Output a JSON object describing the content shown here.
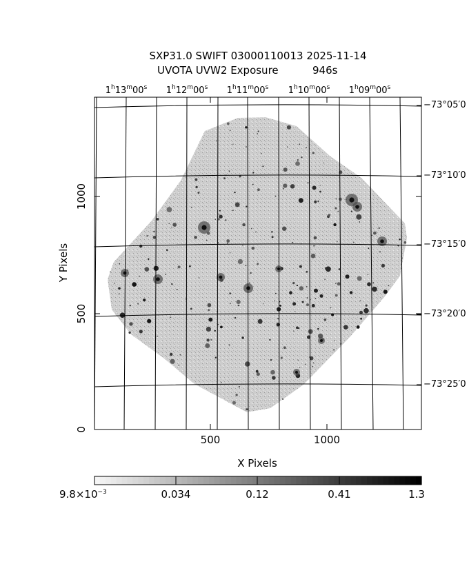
{
  "title": {
    "line1": "SXP31.0 SWIFT 03000110013 2025-11-14",
    "line2": "UVOTA UVW2 Exposure",
    "exposure": "946s"
  },
  "axes": {
    "xlabel": "X Pixels",
    "ylabel": "Y Pixels",
    "x_ticks": [
      "500",
      "1000"
    ],
    "y_ticks": [
      "0",
      "500",
      "1000"
    ]
  },
  "ra_labels": [
    {
      "h": "1",
      "m": "13",
      "s": "00"
    },
    {
      "h": "1",
      "m": "12",
      "s": "00"
    },
    {
      "h": "1",
      "m": "11",
      "s": "00"
    },
    {
      "h": "1",
      "m": "10",
      "s": "00"
    },
    {
      "h": "1",
      "m": "09",
      "s": "00"
    }
  ],
  "dec_labels": [
    "−73°05′0",
    "−73°10′0",
    "−73°15′0",
    "−73°20′0",
    "−73°25′0"
  ],
  "colorbar": {
    "labels": [
      "9.8×10",
      "0.034",
      "0.12",
      "0.41",
      "1.3"
    ],
    "first_exponent": "−3"
  }
}
